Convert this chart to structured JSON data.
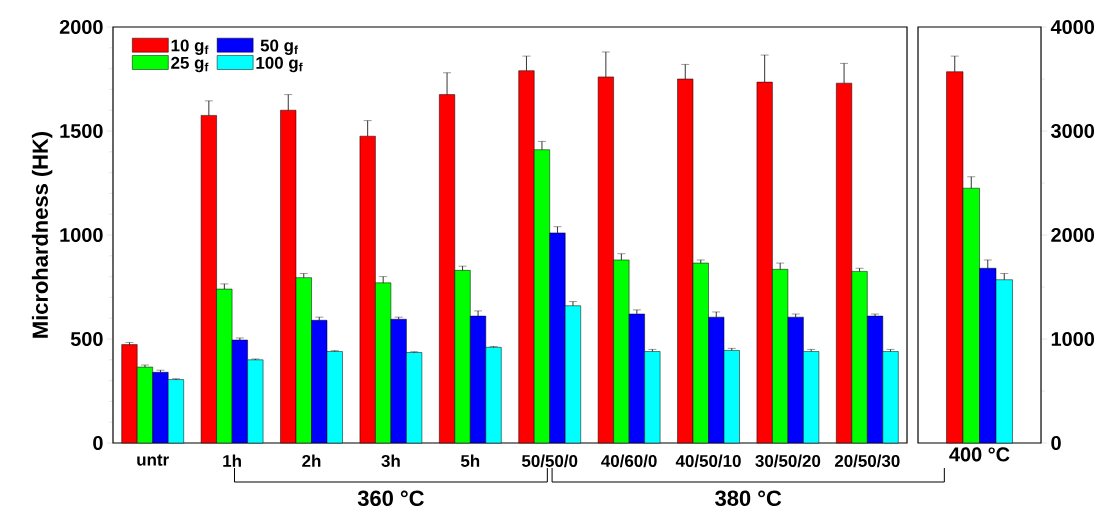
{
  "chart_data": [
    {
      "type": "bar",
      "ylabel": "Microhardness (HK)",
      "categories": [
        "untr",
        "1h",
        "2h",
        "3h",
        "5h",
        "50/50/0",
        "40/60/0",
        "40/50/10",
        "30/50/20",
        "20/50/30"
      ],
      "series": [
        {
          "name": "10 g$_{f}$",
          "color": "#ff0000",
          "values": [
            473,
            1575,
            1600,
            1475,
            1675,
            1790,
            1760,
            1750,
            1735,
            1730
          ],
          "errors": [
            10,
            70,
            75,
            75,
            105,
            70,
            120,
            70,
            130,
            95
          ]
        },
        {
          "name": "25 g$_{f}$",
          "color": "#00ff00",
          "values": [
            365,
            740,
            795,
            770,
            830,
            1410,
            880,
            865,
            835,
            825
          ],
          "errors": [
            10,
            25,
            20,
            30,
            20,
            40,
            30,
            15,
            30,
            15
          ]
        },
        {
          "name": "50 g$_{f}$",
          "color": "#0000ff",
          "values": [
            340,
            495,
            590,
            595,
            610,
            1010,
            620,
            605,
            605,
            610
          ],
          "errors": [
            10,
            10,
            15,
            10,
            25,
            30,
            20,
            25,
            15,
            10
          ]
        },
        {
          "name": "100 g$_{f}$",
          "color": "#00ffff",
          "values": [
            305,
            400,
            440,
            435,
            460,
            660,
            440,
            445,
            440,
            440
          ],
          "errors": [
            4,
            4,
            4,
            4,
            4,
            20,
            10,
            10,
            10,
            10
          ]
        }
      ],
      "ylim": [
        0,
        2000
      ],
      "yticks": [
        0,
        500,
        1000,
        1500,
        2000
      ],
      "legend": "top left",
      "annotations": [
        "360 °C",
        "380 °C"
      ]
    },
    {
      "type": "bar",
      "xlabel": "400 °C",
      "categories": [
        null
      ],
      "series": [
        {
          "color": "#ff0000",
          "values": [
            3570
          ],
          "errors": [
            150
          ]
        },
        {
          "color": "#00ff00",
          "values": [
            2450
          ],
          "errors": [
            110
          ]
        },
        {
          "color": "#0000ff",
          "values": [
            1680
          ],
          "errors": [
            80
          ]
        },
        {
          "color": "#00ffff",
          "values": [
            1570
          ],
          "errors": [
            60
          ]
        }
      ],
      "ylim": [
        0,
        4000
      ],
      "yticks": [
        0,
        1000,
        2000,
        3000,
        4000
      ]
    }
  ]
}
